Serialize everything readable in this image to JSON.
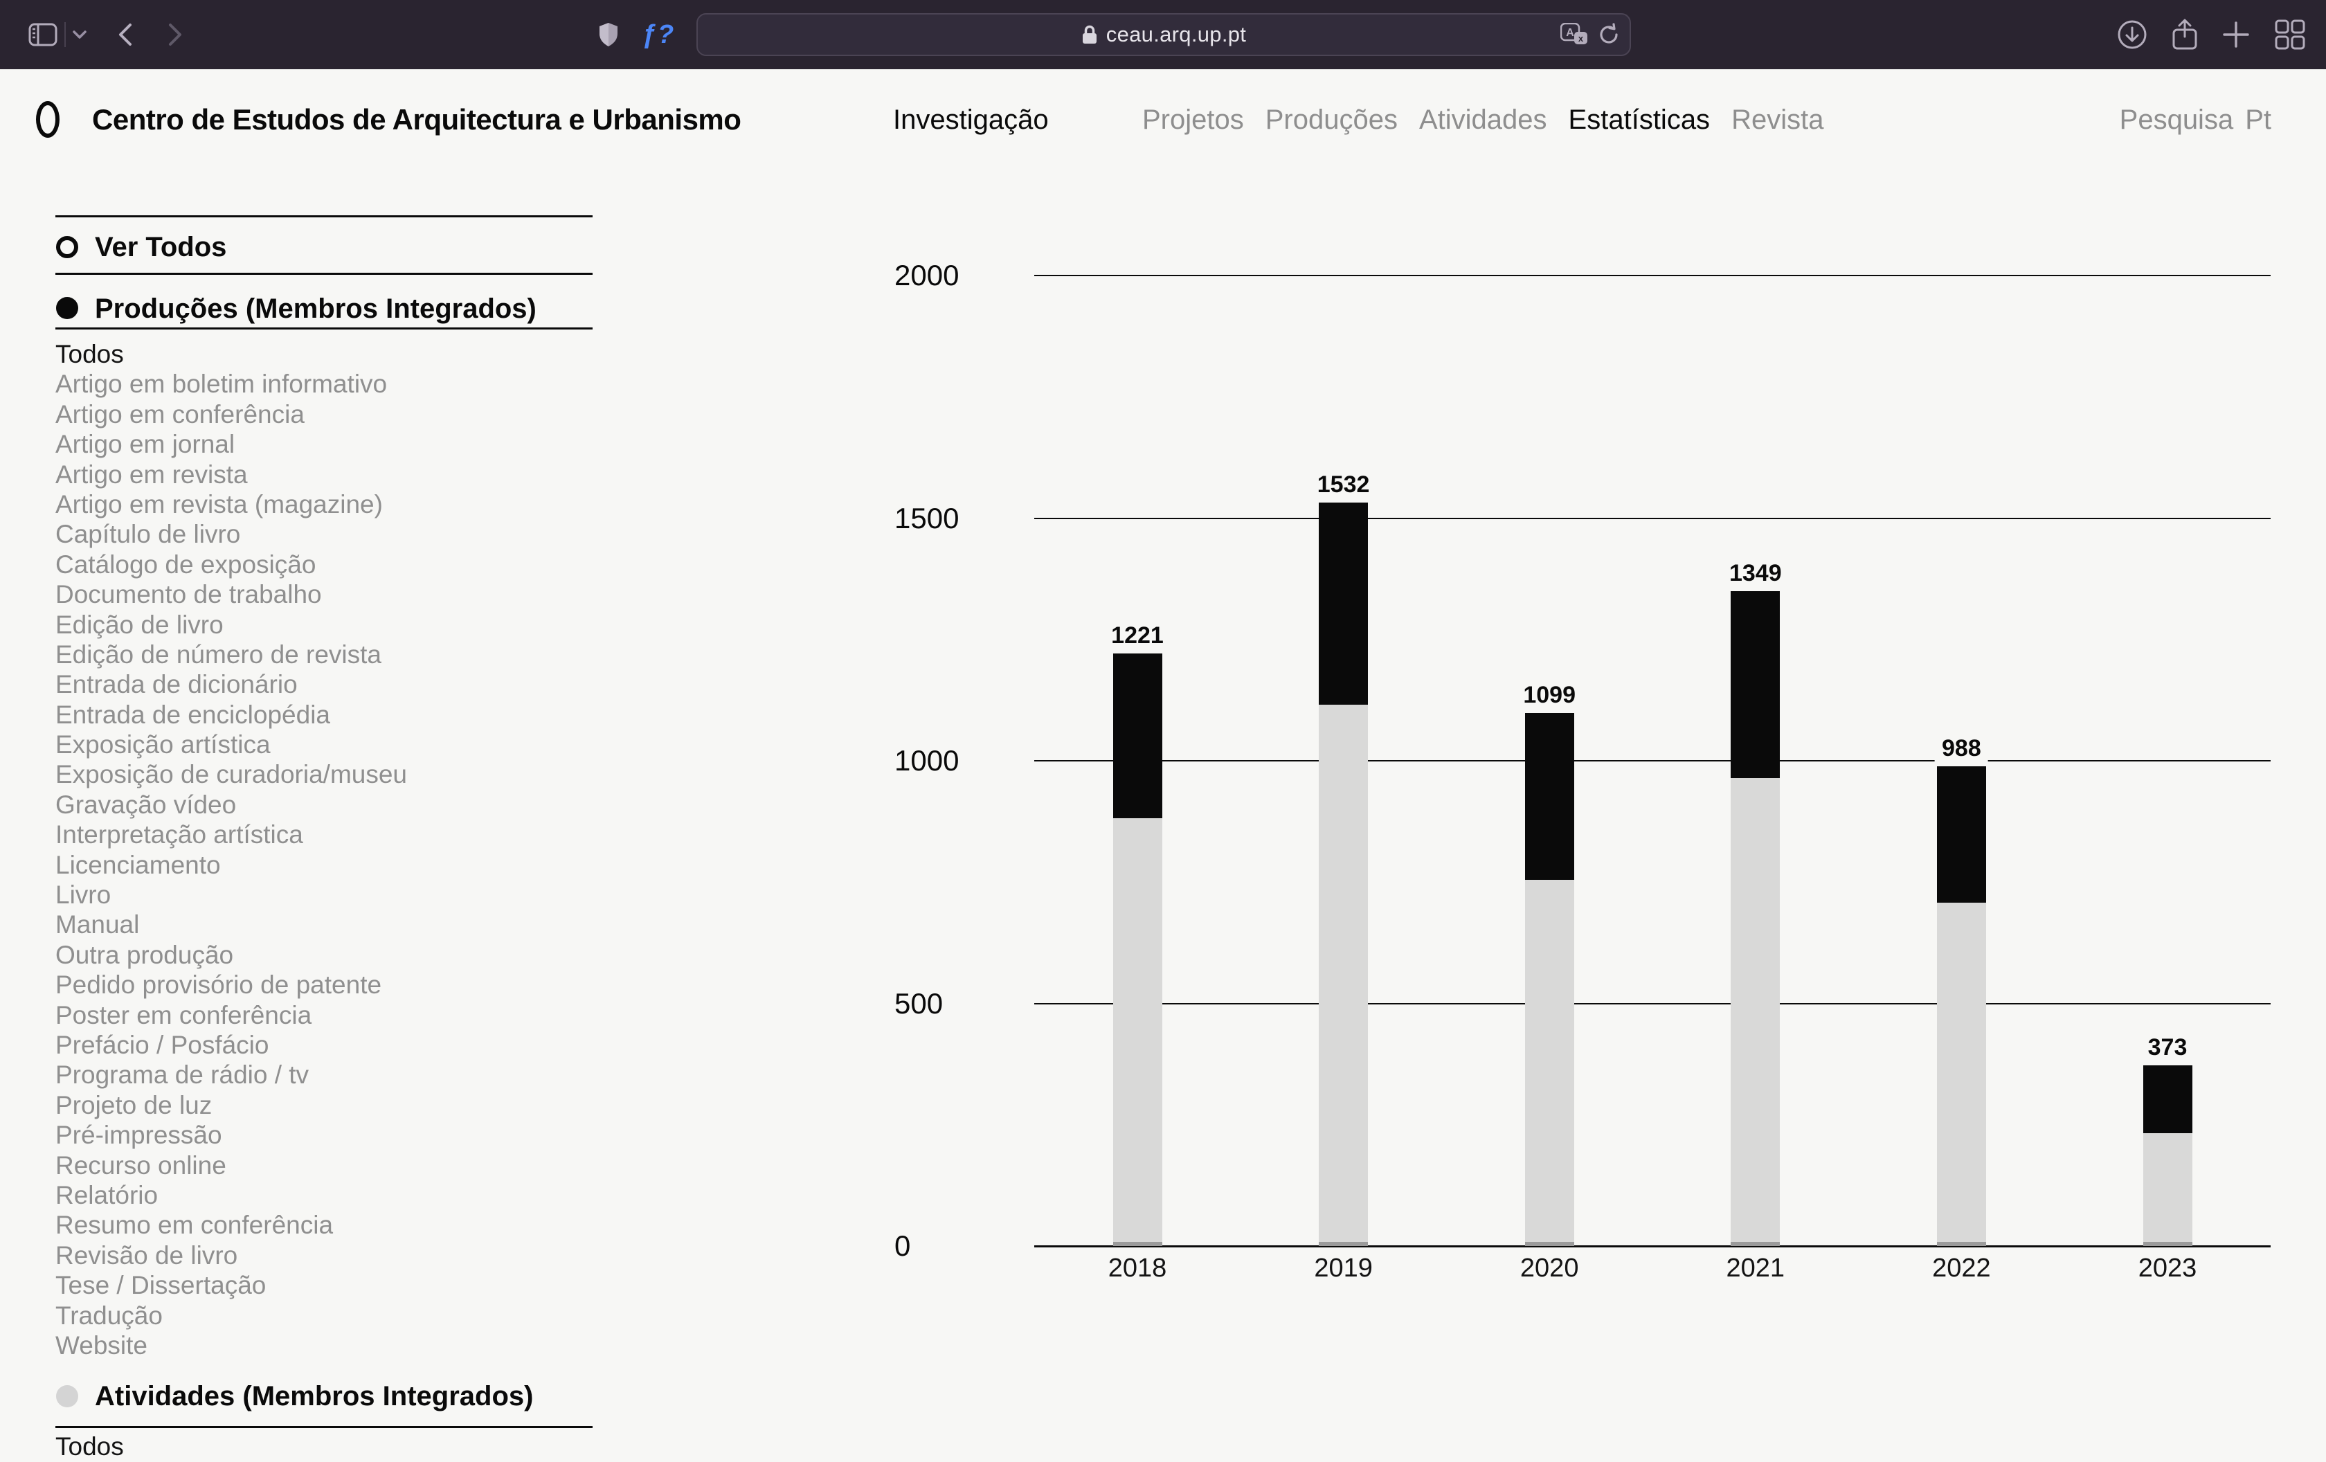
{
  "browser": {
    "url": "ceau.arq.up.pt",
    "extension_find_label": "ƒ?",
    "toolbar_icons": [
      "sidebar-toggle",
      "tab-group-chevron",
      "back",
      "forward",
      "privacy-shield",
      "lock",
      "translate",
      "reload",
      "downloads",
      "share",
      "new-tab",
      "tab-overview"
    ]
  },
  "header": {
    "site_title": "Centro de Estudos de Arquitectura e Urbanismo",
    "section": "Investigação",
    "nav": [
      {
        "label": "Projetos",
        "active": false
      },
      {
        "label": "Produções",
        "active": false
      },
      {
        "label": "Atividades",
        "active": false
      },
      {
        "label": "Estatísticas",
        "active": true
      },
      {
        "label": "Revista",
        "active": false
      }
    ],
    "search_label": "Pesquisa",
    "lang_label": "Pt"
  },
  "sidebar": {
    "view_all": "Ver Todos",
    "sections": [
      {
        "label": "Produções (Membros Integrados)",
        "state": "selected"
      },
      {
        "label": "Atividades (Membros Integrados)",
        "state": "unselected"
      }
    ],
    "production_types": [
      "Todos",
      "Artigo em boletim informativo",
      "Artigo em conferência",
      "Artigo em jornal",
      "Artigo em revista",
      "Artigo em revista (magazine)",
      "Capítulo de livro",
      "Catálogo de exposição",
      "Documento de trabalho",
      "Edição de livro",
      "Edição de número de revista",
      "Entrada de dicionário",
      "Entrada de enciclopédia",
      "Exposição artística",
      "Exposição de curadoria/museu",
      "Gravação vídeo",
      "Interpretação artística",
      "Licenciamento",
      "Livro",
      "Manual",
      "Outra produção",
      "Pedido provisório de patente",
      "Poster em conferência",
      "Prefácio / Posfácio",
      "Programa de rádio / tv",
      "Projeto de luz",
      "Pré-impressão",
      "Recurso online",
      "Relatório",
      "Resumo em conferência",
      "Revisão de livro",
      "Tese / Dissertação",
      "Tradução",
      "Website"
    ],
    "production_active": "Todos",
    "atividades_first_item": "Todos"
  },
  "chart_data": {
    "type": "bar",
    "stacked": true,
    "title": "",
    "xlabel": "",
    "ylabel": "",
    "categories": [
      "2018",
      "2019",
      "2020",
      "2021",
      "2022",
      "2023"
    ],
    "totals": [
      1221,
      1532,
      1099,
      1349,
      988,
      373
    ],
    "series": [
      {
        "name": "segment-base",
        "color": "#9b9b9b",
        "values": [
          9,
          9,
          8,
          9,
          9,
          9
        ]
      },
      {
        "name": "segment-light",
        "color": "#d9d9d8",
        "values": [
          873,
          1106,
          747,
          955,
          698,
          223
        ]
      },
      {
        "name": "segment-black",
        "color": "#0a0a0a",
        "values": [
          339,
          417,
          344,
          385,
          281,
          141
        ]
      }
    ],
    "yticks": [
      0,
      500,
      1000,
      1500,
      2000
    ],
    "ylim": [
      0,
      2000
    ],
    "grid": true,
    "legend": false
  },
  "colors": {
    "page_bg": "#f7f7f5",
    "chrome_bg": "#2a2430",
    "gray_text": "#8e8e8e",
    "bar_black": "#0a0a0a",
    "bar_light": "#d9d9d8",
    "bar_base": "#9b9b9b"
  }
}
